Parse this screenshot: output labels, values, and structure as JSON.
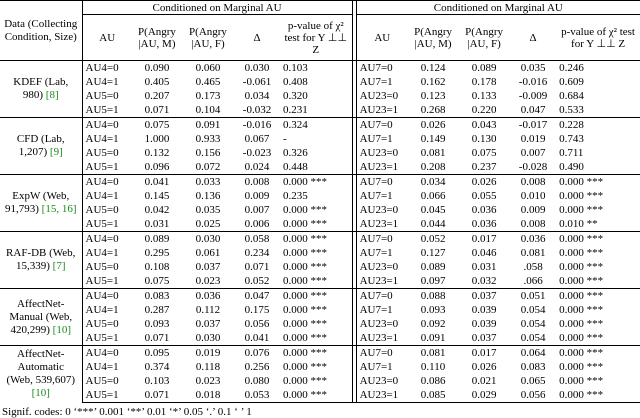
{
  "header": {
    "data_col": "Data (Collecting Condition, Size)",
    "group_titles": [
      "Conditioned on Marginal AU",
      "Conditioned on Marginal AU"
    ],
    "columns_left": [
      "AU",
      "P(Angry |AU, M)",
      "P(Angry |AU, F)",
      "Δ",
      "p-value of χ² test for Y ⊥⊥ Z"
    ],
    "columns_right": [
      "AU",
      "P(Angry |AU, M)",
      "P(Angry |AU, F)",
      "Δ",
      "p-value of χ² test for Y ⊥⊥ Z"
    ]
  },
  "groups": [
    {
      "dataset": "KDEF (Lab, 980)",
      "cite": "[8]",
      "rows": [
        [
          "AU4=0",
          "0.090",
          "0.060",
          "0.030",
          "0.103",
          "AU7=0",
          "0.124",
          "0.089",
          "0.035",
          "0.246"
        ],
        [
          "AU4=1",
          "0.405",
          "0.465",
          "-0.061",
          "0.408",
          "AU7=1",
          "0.162",
          "0.178",
          "-0.016",
          "0.609"
        ],
        [
          "AU5=0",
          "0.207",
          "0.173",
          "0.034",
          "0.320",
          "AU23=0",
          "0.123",
          "0.133",
          "-0.009",
          "0.684"
        ],
        [
          "AU5=1",
          "0.071",
          "0.104",
          "-0.032",
          "0.231",
          "AU23=1",
          "0.268",
          "0.220",
          "0.047",
          "0.533"
        ]
      ]
    },
    {
      "dataset": "CFD (Lab, 1,207)",
      "cite": "[9]",
      "rows": [
        [
          "AU4=0",
          "0.075",
          "0.091",
          "-0.016",
          "0.324",
          "AU7=0",
          "0.026",
          "0.043",
          "-0.017",
          "0.228"
        ],
        [
          "AU4=1",
          "1.000",
          "0.933",
          "0.067",
          "-",
          "AU7=1",
          "0.149",
          "0.130",
          "0.019",
          "0.743"
        ],
        [
          "AU5=0",
          "0.132",
          "0.156",
          "-0.023",
          "0.326",
          "AU23=0",
          "0.081",
          "0.075",
          "0.007",
          "0.711"
        ],
        [
          "AU5=1",
          "0.096",
          "0.072",
          "0.024",
          "0.448",
          "AU23=1",
          "0.208",
          "0.237",
          "-0.028",
          "0.490"
        ]
      ]
    },
    {
      "dataset": "ExpW (Web, 91,793)",
      "cite": "[15, 16]",
      "rows": [
        [
          "AU4=0",
          "0.041",
          "0.033",
          "0.008",
          "0.000 ***",
          "AU7=0",
          "0.034",
          "0.026",
          "0.008",
          "0.000 ***"
        ],
        [
          "AU4=1",
          "0.145",
          "0.136",
          "0.009",
          "0.235",
          "AU7=1",
          "0.066",
          "0.055",
          "0.010",
          "0.000 ***"
        ],
        [
          "AU5=0",
          "0.042",
          "0.035",
          "0.007",
          "0.000 ***",
          "AU23=0",
          "0.045",
          "0.036",
          "0.009",
          "0.000 ***"
        ],
        [
          "AU5=1",
          "0.031",
          "0.025",
          "0.006",
          "0.000 ***",
          "AU23=1",
          "0.044",
          "0.036",
          "0.008",
          "0.010 **"
        ]
      ]
    },
    {
      "dataset": "RAF-DB (Web, 15,339)",
      "cite": "[7]",
      "rows": [
        [
          "AU4=0",
          "0.089",
          "0.030",
          "0.058",
          "0.000 ***",
          "AU7=0",
          "0.052",
          "0.017",
          "0.036",
          "0.000 ***"
        ],
        [
          "AU4=1",
          "0.295",
          "0.061",
          "0.234",
          "0.000 ***",
          "AU7=1",
          "0.127",
          "0.046",
          "0.081",
          "0.000 ***"
        ],
        [
          "AU5=0",
          "0.108",
          "0.037",
          "0.071",
          "0.000 ***",
          "AU23=0",
          "0.089",
          "0.031",
          ".058",
          "0.000 ***"
        ],
        [
          "AU5=1",
          "0.075",
          "0.023",
          "0.052",
          "0.000 ***",
          "AU23=1",
          "0.097",
          "0.032",
          ".066",
          "0.000 ***"
        ]
      ]
    },
    {
      "dataset": "AffectNet-Manual (Web, 420,299)",
      "cite": "[10]",
      "rows": [
        [
          "AU4=0",
          "0.083",
          "0.036",
          "0.047",
          "0.000 ***",
          "AU7=0",
          "0.088",
          "0.037",
          "0.051",
          "0.000 ***"
        ],
        [
          "AU4=1",
          "0.287",
          "0.112",
          "0.175",
          "0.000 ***",
          "AU7=1",
          "0.093",
          "0.039",
          "0.054",
          "0.000 ***"
        ],
        [
          "AU5=0",
          "0.093",
          "0.037",
          "0.056",
          "0.000 ***",
          "AU23=0",
          "0.092",
          "0.039",
          "0.054",
          "0.000 ***"
        ],
        [
          "AU5=1",
          "0.071",
          "0.030",
          "0.041",
          "0.000 ***",
          "AU23=1",
          "0.091",
          "0.037",
          "0.054",
          "0.000 ***"
        ]
      ]
    },
    {
      "dataset": "AffectNet-Automatic (Web, 539,607)",
      "cite": "[10]",
      "rows": [
        [
          "AU4=0",
          "0.095",
          "0.019",
          "0.076",
          "0.000 ***",
          "AU7=0",
          "0.081",
          "0.017",
          "0.064",
          "0.000 ***"
        ],
        [
          "AU4=1",
          "0.374",
          "0.118",
          "0.256",
          "0.000 ***",
          "AU7=1",
          "0.110",
          "0.026",
          "0.083",
          "0.000 ***"
        ],
        [
          "AU5=0",
          "0.103",
          "0.023",
          "0.080",
          "0.000 ***",
          "AU23=0",
          "0.086",
          "0.021",
          "0.065",
          "0.000 ***"
        ],
        [
          "AU5=1",
          "0.071",
          "0.018",
          "0.053",
          "0.000 ***",
          "AU23=1",
          "0.085",
          "0.029",
          "0.056",
          "0.000 ***"
        ]
      ]
    }
  ],
  "footer": "Signif. codes: 0 ‘***’ 0.001 ‘**’ 0.01 ‘*’ 0.05 ‘.’ 0.1 ‘ ’ 1"
}
